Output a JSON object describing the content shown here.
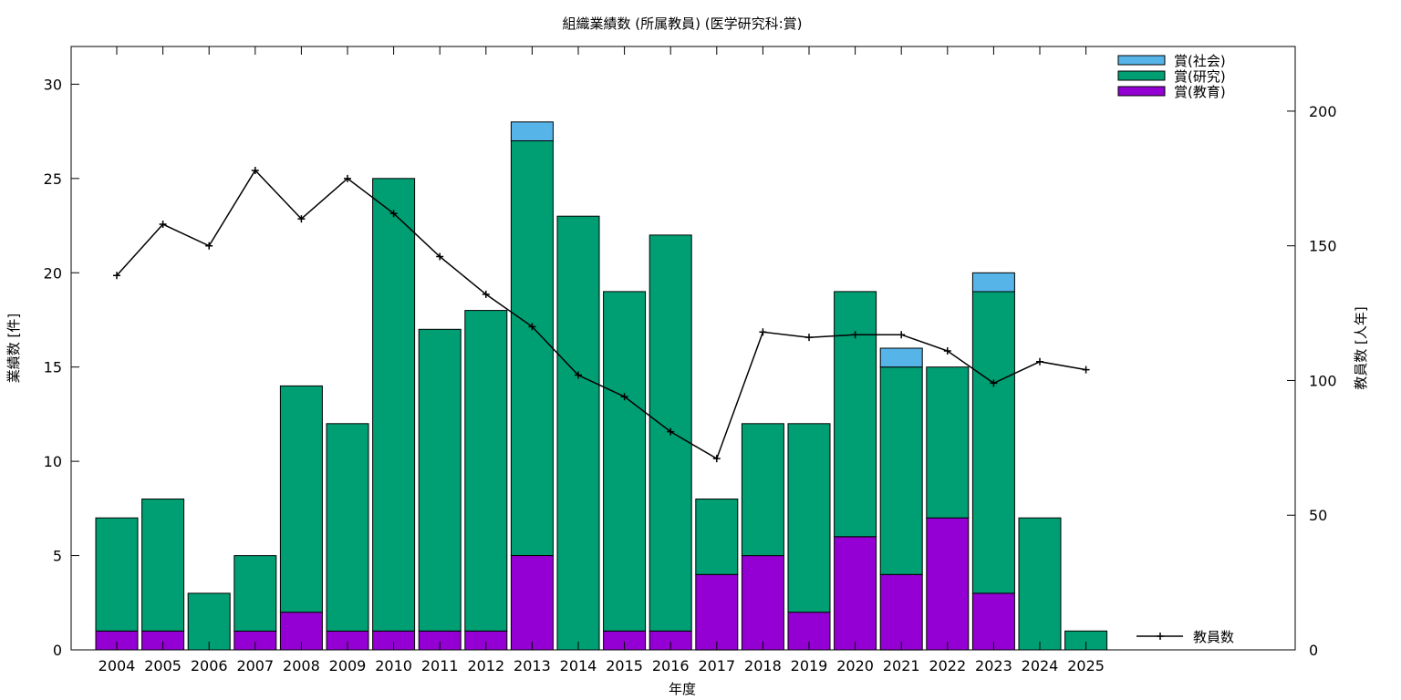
{
  "chart_data": {
    "type": "bar",
    "title": "組織業績数 (所属教員) (医学研究科:賞)",
    "xlabel": "年度",
    "ylabel": "業績数 [件]",
    "y2label": "教員数 [人年]",
    "ylim": [
      0,
      32
    ],
    "y2lim": [
      0,
      224
    ],
    "yticks": [
      0,
      5,
      10,
      15,
      20,
      25,
      30
    ],
    "y2ticks": [
      0,
      50,
      100,
      150,
      200
    ],
    "grid": false,
    "legend_position": "top-right",
    "categories": [
      "2004",
      "2005",
      "2006",
      "2007",
      "2008",
      "2009",
      "2010",
      "2011",
      "2012",
      "2013",
      "2014",
      "2015",
      "2016",
      "2017",
      "2018",
      "2019",
      "2020",
      "2021",
      "2022",
      "2023",
      "2024",
      "2025"
    ],
    "series": [
      {
        "name": "賞(教育)",
        "color": "#9400d3",
        "values": [
          1,
          1,
          0,
          1,
          2,
          1,
          1,
          1,
          1,
          5,
          0,
          1,
          1,
          4,
          5,
          2,
          6,
          4,
          7,
          3,
          0,
          0
        ]
      },
      {
        "name": "賞(研究)",
        "color": "#009e73",
        "values": [
          6,
          7,
          3,
          4,
          12,
          11,
          24,
          16,
          17,
          22,
          23,
          18,
          21,
          4,
          7,
          10,
          13,
          11,
          8,
          16,
          7,
          1
        ]
      },
      {
        "name": "賞(社会)",
        "color": "#56b4e9",
        "values": [
          0,
          0,
          0,
          0,
          0,
          0,
          0,
          0,
          0,
          1,
          0,
          0,
          0,
          0,
          0,
          0,
          0,
          1,
          0,
          1,
          0,
          0
        ]
      }
    ],
    "line_series": {
      "name": "教員数",
      "color": "#000000",
      "axis": "y2",
      "values": [
        139,
        158,
        150,
        178,
        160,
        175,
        162,
        146,
        132,
        120,
        102,
        94,
        81,
        71,
        118,
        116,
        117,
        117,
        111,
        99,
        107,
        104
      ]
    }
  }
}
